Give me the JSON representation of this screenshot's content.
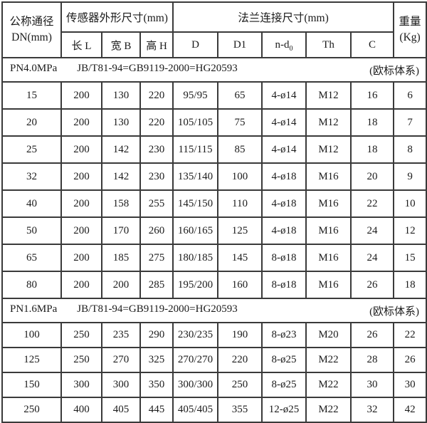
{
  "table": {
    "header": {
      "dn_line1": "公称通径",
      "dn_line2": "DN(mm)",
      "sensor_group": "传感器外形尺寸(mm)",
      "flange_group": "法兰连接尺寸(mm)",
      "weight_line1": "重量",
      "weight_line2": "(Kg)",
      "cols": [
        {
          "text": "长 L"
        },
        {
          "text": "宽 B"
        },
        {
          "text": "高 H"
        },
        {
          "text": "D"
        },
        {
          "text": "D1"
        },
        {
          "text": "n-d",
          "sub": "0"
        },
        {
          "text": "Th"
        },
        {
          "text": "C"
        }
      ],
      "col_keys": [
        "dn",
        "l",
        "b",
        "h",
        "d",
        "d1",
        "nd0",
        "th",
        "c",
        "weight"
      ]
    },
    "sections": [
      {
        "pressure": "PN4.0MPa",
        "standard": "JB/T81-94=GB9119-2000=HG20593",
        "note": "(欧标体系)",
        "rows": [
          [
            "15",
            "200",
            "130",
            "220",
            "95/95",
            "65",
            "4-ø14",
            "M12",
            "16",
            "6"
          ],
          [
            "20",
            "200",
            "130",
            "220",
            "105/105",
            "75",
            "4-ø14",
            "M12",
            "18",
            "7"
          ],
          [
            "25",
            "200",
            "142",
            "230",
            "115/115",
            "85",
            "4-ø14",
            "M12",
            "18",
            "8"
          ],
          [
            "32",
            "200",
            "142",
            "230",
            "135/140",
            "100",
            "4-ø18",
            "M16",
            "20",
            "9"
          ],
          [
            "40",
            "200",
            "158",
            "255",
            "145/150",
            "110",
            "4-ø18",
            "M16",
            "22",
            "10"
          ],
          [
            "50",
            "200",
            "170",
            "260",
            "160/165",
            "125",
            "4-ø18",
            "M16",
            "24",
            "12"
          ],
          [
            "65",
            "200",
            "185",
            "275",
            "180/185",
            "145",
            "8-ø18",
            "M16",
            "24",
            "15"
          ],
          [
            "80",
            "200",
            "200",
            "285",
            "195/200",
            "160",
            "8-ø18",
            "M16",
            "26",
            "18"
          ]
        ]
      },
      {
        "pressure": "PN1.6MPa",
        "standard": "JB/T81-94=GB9119-2000=HG20593",
        "note": "(欧标体系)",
        "rows": [
          [
            "100",
            "250",
            "235",
            "290",
            "230/235",
            "190",
            "8-ø23",
            "M20",
            "26",
            "22"
          ],
          [
            "125",
            "250",
            "270",
            "325",
            "270/270",
            "220",
            "8-ø25",
            "M22",
            "28",
            "26"
          ],
          [
            "150",
            "300",
            "300",
            "350",
            "300/300",
            "250",
            "8-ø25",
            "M22",
            "30",
            "30"
          ],
          [
            "250",
            "400",
            "405",
            "445",
            "405/405",
            "355",
            "12-ø25",
            "M22",
            "32",
            "42"
          ]
        ]
      }
    ],
    "colors": {
      "border": "#3a3a3a",
      "text": "#1b1b1b",
      "background": "#ffffff"
    }
  }
}
